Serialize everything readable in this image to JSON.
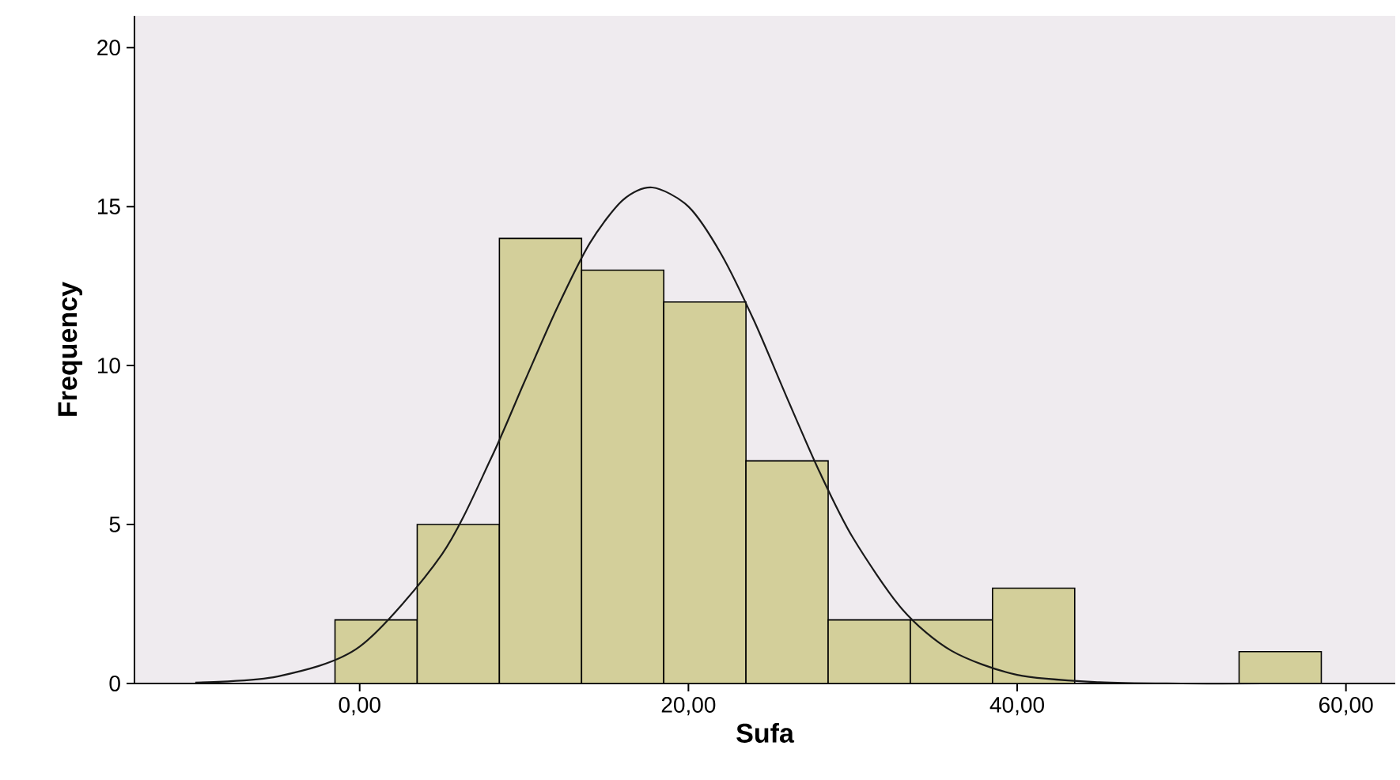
{
  "chart_data": {
    "type": "histogram",
    "xlabel": "Sufa",
    "ylabel": "Frequency",
    "series": [
      {
        "color": "#d3cf9a",
        "bins": [
          -1.5,
          3.5,
          8.5,
          13.5,
          18.5,
          23.5,
          28.5,
          33.5,
          38.5,
          43.5,
          48.5,
          53.5,
          58.5
        ],
        "values": [
          2,
          5,
          14,
          13,
          12,
          7,
          2,
          2,
          3,
          0,
          0,
          1
        ]
      },
      {
        "type": "line",
        "color": "#1a1a1a",
        "x": [
          -10,
          -5,
          0,
          5,
          8,
          10,
          12,
          14,
          16,
          17.8,
          20,
          22,
          24,
          26,
          28,
          30,
          33,
          36,
          40,
          45,
          50,
          55,
          60
        ],
        "values": [
          0.03,
          0.22,
          1.16,
          4.06,
          7.09,
          9.46,
          11.8,
          13.85,
          15.2,
          15.6,
          15.0,
          13.5,
          11.4,
          8.98,
          6.63,
          4.59,
          2.34,
          1.03,
          0.27,
          0.04,
          0,
          0,
          0
        ]
      }
    ],
    "xlim": [
      -13.7,
      63
    ],
    "ylim": [
      0,
      21
    ],
    "xticks": [
      {
        "value": 0,
        "label": "0,00"
      },
      {
        "value": 20,
        "label": "20,00"
      },
      {
        "value": 40,
        "label": "40,00"
      },
      {
        "value": 60,
        "label": "60,00"
      }
    ],
    "yticks": [
      0,
      5,
      10,
      15,
      20
    ],
    "grid": false
  }
}
